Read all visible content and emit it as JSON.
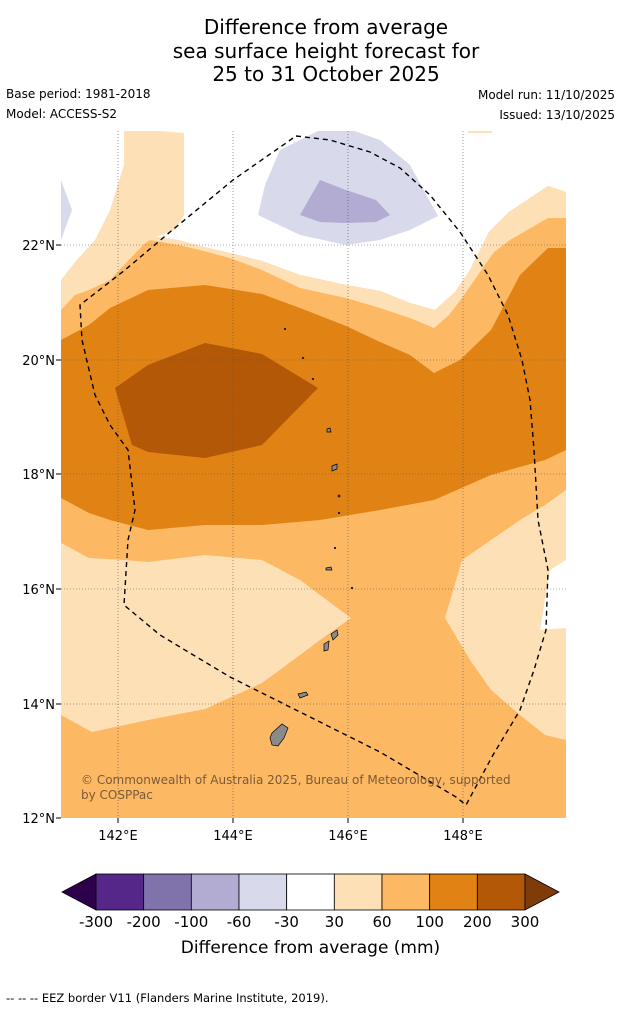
{
  "title": {
    "line1": "Difference from average",
    "line2": "sea surface height forecast for",
    "line3": "25 to 31 October 2025"
  },
  "meta": {
    "base_period": "Base period: 1981-2018",
    "model": "Model: ACCESS-S2",
    "model_run": "Model run: 11/10/2025",
    "issued": "Issued: 13/10/2025"
  },
  "map": {
    "lon_ticks": [
      "142°E",
      "144°E",
      "146°E",
      "148°E"
    ],
    "lat_ticks": [
      "22°N",
      "20°N",
      "18°N",
      "16°N",
      "14°N",
      "12°N"
    ],
    "copyright_line1": "© Commonwealth of Australia 2025, Bureau of Meteorology, supported",
    "copyright_line2": "by COSPPac"
  },
  "colorbar": {
    "tick_labels": [
      "-300",
      "-200",
      "-100",
      "-60",
      "-30",
      "30",
      "60",
      "100",
      "200",
      "300"
    ],
    "label": "Difference from average (mm)",
    "colors": [
      "#2d004b",
      "#542788",
      "#8073ac",
      "#b2abd2",
      "#d8daeb",
      "#ffffff",
      "#fee0b6",
      "#fdb863",
      "#e08214",
      "#b35806",
      "#7f3b08"
    ]
  },
  "footer": {
    "legend": "--  --  -- EEZ border V11 (Flanders Marine Institute, 2019)."
  }
}
